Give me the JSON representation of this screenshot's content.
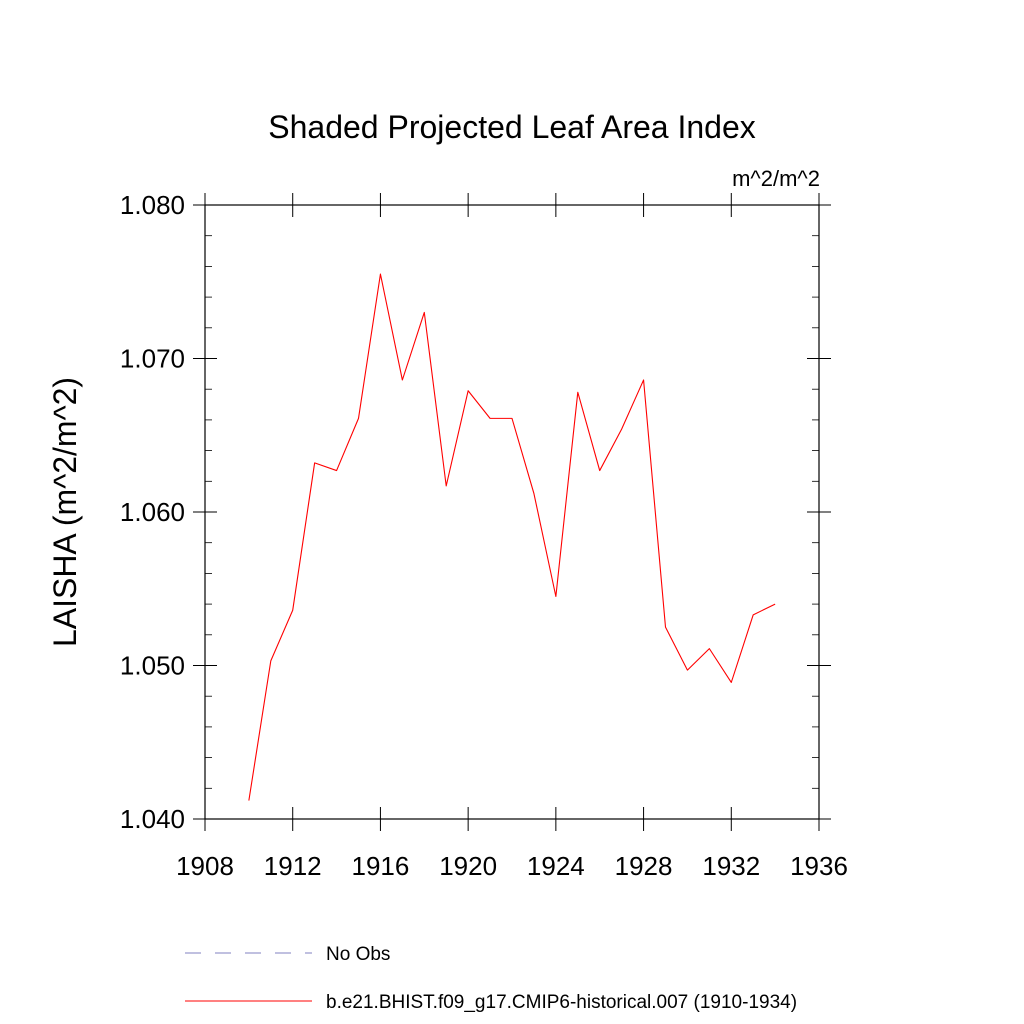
{
  "chart_data": {
    "type": "line",
    "title": "Shaded Projected Leaf Area Index",
    "units_label": "m^2/m^2",
    "ylabel": "LAISHA  (m^2/m^2)",
    "xlabel": "",
    "xlim": [
      1908,
      1936
    ],
    "ylim": [
      1.04,
      1.08
    ],
    "x_ticks": [
      1908,
      1912,
      1916,
      1920,
      1924,
      1928,
      1932,
      1936
    ],
    "x_tick_labels": [
      "1908",
      "1912",
      "1916",
      "1920",
      "1924",
      "1928",
      "1932",
      "1936"
    ],
    "y_ticks": [
      1.04,
      1.05,
      1.06,
      1.07,
      1.08
    ],
    "y_tick_labels": [
      "1.040",
      "1.050",
      "1.060",
      "1.070",
      "1.080"
    ],
    "grid": false,
    "legend_position": "bottom",
    "series": [
      {
        "name": "b.e21.BHIST.f09_g17.CMIP6-historical.007 (1910-1934)",
        "color": "#ff0000",
        "dash": "solid",
        "x": [
          1910,
          1911,
          1912,
          1913,
          1914,
          1915,
          1916,
          1917,
          1918,
          1919,
          1920,
          1921,
          1922,
          1923,
          1924,
          1925,
          1926,
          1927,
          1928,
          1929,
          1930,
          1931,
          1932,
          1933,
          1934
        ],
        "y": [
          1.0412,
          1.0503,
          1.0536,
          1.0632,
          1.0627,
          1.0661,
          1.0755,
          1.0686,
          1.073,
          1.0617,
          1.0679,
          1.0661,
          1.0661,
          1.0612,
          1.0545,
          1.0678,
          1.0627,
          1.0654,
          1.0686,
          1.0525,
          1.0497,
          1.0511,
          1.0489,
          1.0533,
          1.054
        ]
      }
    ],
    "legend": [
      {
        "label": "No Obs",
        "color": "#8080c0",
        "dash": "dashed"
      },
      {
        "label": "b.e21.BHIST.f09_g17.CMIP6-historical.007 (1910-1934)",
        "color": "#ff0000",
        "dash": "solid"
      }
    ]
  }
}
